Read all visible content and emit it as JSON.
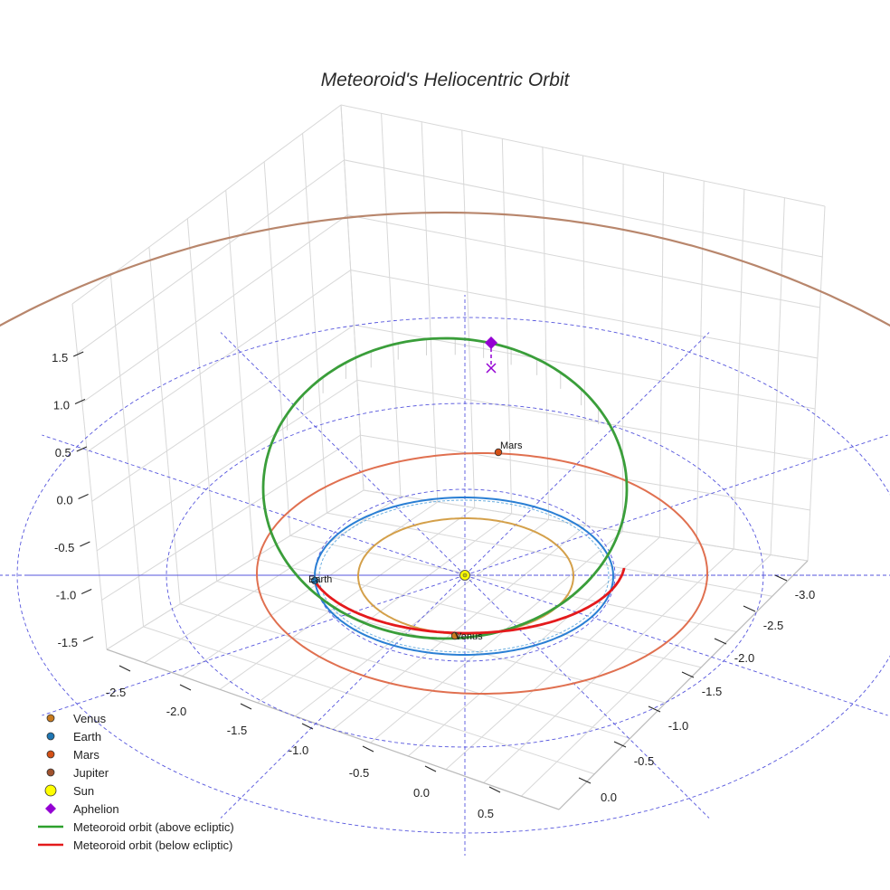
{
  "chart_data": {
    "type": "scatter",
    "title": "Meteoroid's Heliocentric Orbit",
    "xlabel": "",
    "ylabel": "",
    "zlabel": "",
    "x_ticks": [
      -2.5,
      -2.0,
      -1.5,
      -1.0,
      -0.5,
      0.0,
      0.5
    ],
    "y_ticks": [
      -3.0,
      -2.5,
      -2.0,
      -1.5,
      -1.0,
      -0.5,
      0.0
    ],
    "z_ticks": [
      -1.5,
      -1.0,
      -0.5,
      0.0,
      0.5,
      1.0,
      1.5
    ],
    "planet_labels": {
      "venus": "Venus",
      "earth": "Earth",
      "mars": "Mars"
    },
    "legend": [
      {
        "label": "Venus",
        "marker": "circle",
        "color": "#c87a1e"
      },
      {
        "label": "Earth",
        "marker": "circle",
        "color": "#1f77b4"
      },
      {
        "label": "Mars",
        "marker": "circle",
        "color": "#d45016"
      },
      {
        "label": "Jupiter",
        "marker": "circle",
        "color": "#a0522d"
      },
      {
        "label": "Sun",
        "marker": "circle",
        "color": "#ffff00"
      },
      {
        "label": "Aphelion",
        "marker": "diamond",
        "color": "#9400d3"
      },
      {
        "label": "Meteoroid orbit (above ecliptic)",
        "marker": "line",
        "color": "#2ca02c"
      },
      {
        "label": "Meteoroid orbit (below ecliptic)",
        "marker": "line",
        "color": "#e31a1c"
      }
    ],
    "legend_placement": "lower-left",
    "grid": true,
    "colors": {
      "venus_orbit": "#d4a04a",
      "earth_orbit": "#2a7fd4",
      "mars_orbit": "#e07050",
      "jupiter_orbit": "#b8866c",
      "meteoroid_above": "#3a9e3a",
      "meteoroid_below": "#e41a1c",
      "ecliptic_grid": "#5555dd"
    }
  }
}
